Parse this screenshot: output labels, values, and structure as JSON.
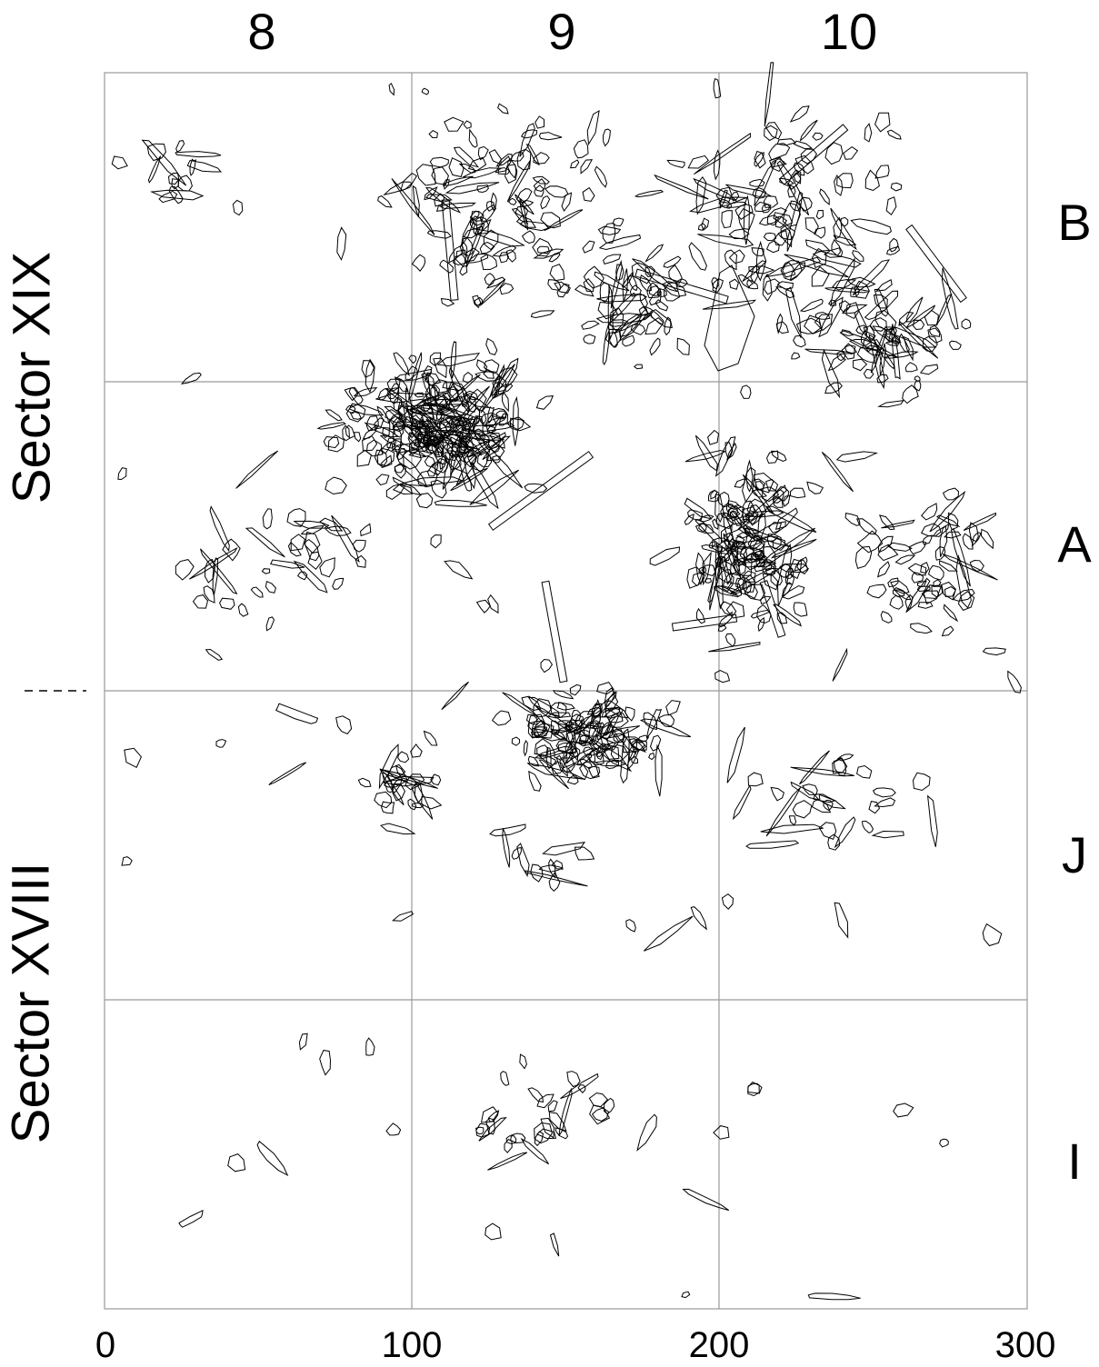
{
  "plan": {
    "column_labels": [
      "8",
      "9",
      "10"
    ],
    "row_labels": [
      "B",
      "A",
      "J",
      "I"
    ],
    "sector_labels": [
      "Sector XIX",
      "Sector XVIII"
    ],
    "x_axis_ticks": [
      "0",
      "100",
      "200",
      "300"
    ],
    "line_color": "#000000",
    "grid_color": "#888888",
    "background": "#ffffff"
  }
}
